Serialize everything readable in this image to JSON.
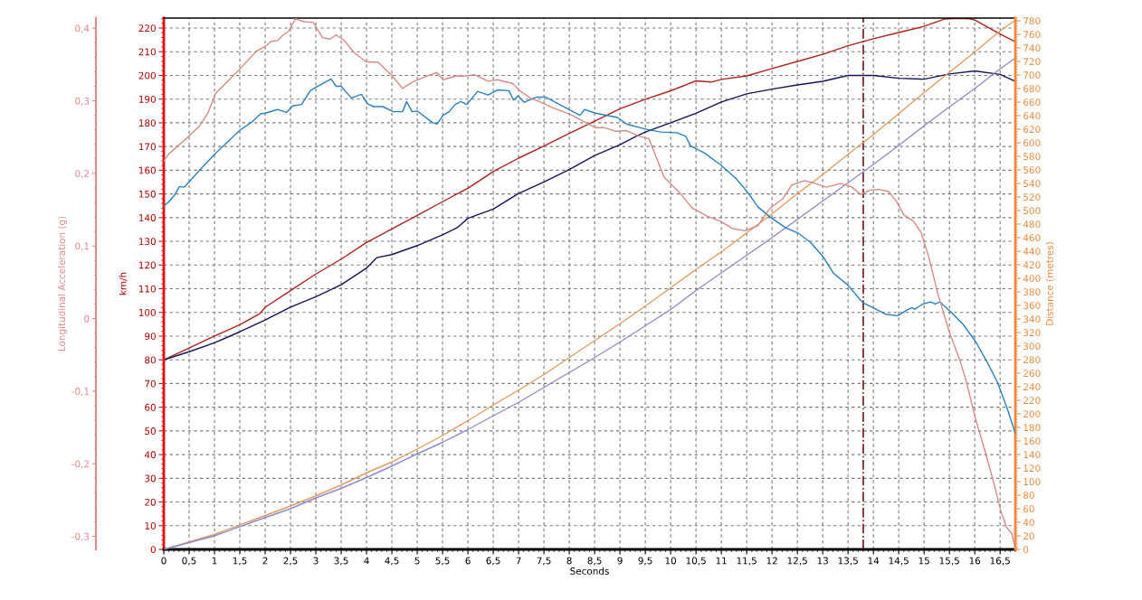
{
  "chart_data": {
    "type": "line",
    "xlabel": "Seconds",
    "ylabel": "km/h",
    "y2label": "Distance (metres)",
    "y3label": "Longitudinal Acceleration (g)",
    "xlim": [
      0,
      16.8
    ],
    "xticks": [
      0,
      {
        "value": 0.5,
        "label": "0,5"
      },
      1,
      {
        "value": 1.5,
        "label": "1,5"
      },
      2,
      {
        "value": 2.5,
        "label": "2,5"
      },
      3,
      {
        "value": 3.5,
        "label": "3,5"
      },
      4,
      {
        "value": 4.5,
        "label": "4,5"
      },
      5,
      {
        "value": 5.5,
        "label": "5,5"
      },
      6,
      {
        "value": 6.5,
        "label": "6,5"
      },
      7,
      {
        "value": 7.5,
        "label": "7,5"
      },
      8,
      {
        "value": 8.5,
        "label": "8,5"
      },
      9,
      {
        "value": 9.5,
        "label": "9,5"
      },
      10,
      {
        "value": 10.5,
        "label": "10,5"
      },
      11,
      {
        "value": 11.5,
        "label": "11,5"
      },
      12,
      {
        "value": 12.5,
        "label": "12,5"
      },
      13,
      {
        "value": 13.5,
        "label": "13,5"
      },
      14,
      {
        "value": 14.5,
        "label": "14,5"
      },
      15,
      {
        "value": 15.5,
        "label": "15,5"
      },
      16,
      {
        "value": 16.5,
        "label": "16,5"
      }
    ],
    "ylim": [
      0,
      224.2
    ],
    "yticks": [
      0,
      10,
      20,
      30,
      40,
      50,
      60,
      70,
      80,
      90,
      100,
      110,
      120,
      130,
      140,
      150,
      160,
      170,
      180,
      190,
      200,
      210,
      220
    ],
    "y2lim": [
      0,
      784
    ],
    "y2ticks": [
      0,
      20,
      40,
      60,
      80,
      100,
      120,
      140,
      160,
      180,
      200,
      220,
      240,
      260,
      280,
      300,
      320,
      340,
      360,
      380,
      400,
      420,
      440,
      460,
      480,
      500,
      520,
      540,
      560,
      580,
      600,
      620,
      640,
      660,
      680,
      700,
      720,
      740,
      760,
      780
    ],
    "y3lim": [
      -0.318,
      0.414
    ],
    "y3ticks": [
      {
        "value": 0.4,
        "label": "0,4"
      },
      {
        "value": 0.3,
        "label": "0,3"
      },
      {
        "value": 0.2,
        "label": "0,2"
      },
      {
        "value": 0.1,
        "label": "0,1"
      },
      {
        "value": 0,
        "label": "0"
      },
      {
        "value": -0.1,
        "label": "-0,1"
      },
      {
        "value": -0.2,
        "label": "-0,2"
      },
      {
        "value": -0.3,
        "label": "-0,3"
      }
    ],
    "grid": true,
    "ref_lines": [
      {
        "axis": "x",
        "value": 13.8,
        "color": "#7a1a1a",
        "line_style": "dashdot"
      }
    ],
    "series": [
      {
        "color": "#b0201c",
        "x": [
          0,
          0.5,
          1,
          1.5,
          1.9,
          2,
          2.5,
          3,
          3.5,
          4,
          4.5,
          5,
          5.5,
          6,
          6.5,
          7,
          7.5,
          8,
          8.5,
          9,
          9.5,
          10,
          10.5,
          10.8,
          11,
          11.5,
          12,
          12.5,
          13,
          13.5,
          14,
          14.5,
          15,
          15.4,
          15.7,
          15.9,
          16,
          16.5,
          16.8
        ],
        "values": [
          80,
          85,
          90,
          94.8,
          99.6,
          102.2,
          109.2,
          116.2,
          122.5,
          129.5,
          135.2,
          140.9,
          146.7,
          152.4,
          159.4,
          165.1,
          170.2,
          175.5,
          180.7,
          185.9,
          189.9,
          193.5,
          197.7,
          197.2,
          198.3,
          199.8,
          202.9,
          205.9,
          208.9,
          212.5,
          215.5,
          218.1,
          220.7,
          223.8,
          224.1,
          223.9,
          223.4,
          217.5,
          214.2
        ]
      },
      {
        "color": "#14145a",
        "x": [
          0,
          0.5,
          1,
          1.5,
          2,
          2.5,
          3,
          3.5,
          4,
          4.2,
          4.5,
          5,
          5.5,
          5.8,
          6,
          6.5,
          7,
          7.5,
          8,
          8.5,
          9,
          9.3,
          9.5,
          10,
          10.5,
          11,
          11.5,
          12,
          12.5,
          13,
          13.5,
          14,
          14.5,
          15,
          15.5,
          16,
          16.5,
          16.8
        ],
        "values": [
          80,
          83.4,
          87.2,
          91.8,
          96.8,
          102.2,
          106.6,
          111.7,
          118.7,
          123.1,
          124.4,
          128.2,
          132.7,
          135.9,
          139.7,
          143.6,
          150.2,
          155.0,
          160.3,
          166.2,
          170.8,
          174.1,
          176.1,
          180.0,
          184.0,
          188.8,
          192.2,
          194.2,
          196.0,
          197.5,
          200.0,
          200.0,
          198.8,
          198.4,
          200.6,
          201.9,
          200.4,
          197.5
        ]
      },
      {
        "color": "#e39a60",
        "axis": "y2",
        "x": [
          0,
          0.5,
          1,
          2,
          2.5,
          3,
          3.5,
          4,
          4.5,
          5,
          5.5,
          6,
          6.5,
          7,
          7.5,
          8,
          8.5,
          9,
          9.5,
          10,
          10.5,
          11,
          11.5,
          12,
          12.5,
          13,
          13.5,
          14,
          14.5,
          15,
          15.5,
          16,
          16.5,
          16.8
        ],
        "values": [
          0,
          11,
          22,
          50,
          64,
          79,
          95,
          113,
          129,
          148,
          168,
          190,
          213,
          235,
          258,
          283,
          308,
          333,
          359,
          386,
          413,
          439,
          467,
          495,
          525,
          553,
          583,
          612,
          643,
          674,
          704,
          734,
          765,
          781
        ]
      },
      {
        "color": "#8c8ccc",
        "axis": "y2",
        "x": [
          0,
          0.5,
          1,
          2,
          2.5,
          3,
          3.5,
          4,
          4.5,
          5,
          5.5,
          6,
          6.5,
          7,
          7.5,
          8,
          8.5,
          9,
          9.5,
          10,
          10.5,
          11,
          11.5,
          12,
          12.5,
          13,
          13.5,
          14,
          14.5,
          15,
          15.5,
          16,
          16.5,
          16.8
        ],
        "values": [
          0,
          10,
          20,
          47,
          60,
          76,
          90,
          106,
          123,
          141,
          158,
          177,
          197,
          217,
          239,
          261,
          283,
          306,
          330,
          354,
          382,
          408,
          434,
          460,
          487,
          514,
          541,
          568,
          596,
          625,
          653,
          680,
          709,
          725
        ]
      },
      {
        "color": "#2a7fc0",
        "axis": "y3",
        "x": [
          0,
          0.1,
          0.22,
          0.31,
          0.4,
          0.52,
          0.7,
          1.01,
          1.51,
          1.76,
          1.91,
          2.0,
          2.24,
          2.42,
          2.54,
          2.72,
          2.89,
          3.01,
          3.3,
          3.4,
          3.5,
          3.7,
          3.9,
          4.02,
          4.14,
          4.32,
          4.53,
          4.71,
          4.79,
          4.9,
          5.0,
          5.3,
          5.39,
          5.51,
          5.63,
          5.75,
          5.86,
          5.98,
          6.19,
          6.4,
          6.58,
          6.81,
          6.9,
          6.99,
          7.11,
          7.35,
          7.54,
          7.78,
          8.21,
          8.3,
          8.52,
          8.95,
          9.13,
          9.5,
          9.81,
          10.12,
          10.3,
          10.39,
          10.67,
          10.98,
          11.29,
          11.53,
          11.72,
          11.96,
          12.27,
          12.51,
          12.76,
          13.01,
          13.22,
          13.5,
          13.75,
          13.84,
          14.05,
          14.24,
          14.48,
          14.67,
          14.76,
          14.82,
          14.97,
          15.13,
          15.22,
          15.31,
          15.53,
          15.77,
          16.02,
          16.26,
          16.45,
          16.63,
          16.8
        ],
        "values": [
          0.155,
          0.161,
          0.171,
          0.182,
          0.181,
          0.19,
          0.204,
          0.227,
          0.26,
          0.272,
          0.282,
          0.283,
          0.288,
          0.284,
          0.293,
          0.295,
          0.314,
          0.319,
          0.33,
          0.32,
          0.32,
          0.304,
          0.309,
          0.296,
          0.292,
          0.292,
          0.285,
          0.285,
          0.299,
          0.285,
          0.286,
          0.27,
          0.268,
          0.28,
          0.285,
          0.295,
          0.299,
          0.295,
          0.313,
          0.308,
          0.315,
          0.314,
          0.301,
          0.307,
          0.298,
          0.305,
          0.305,
          0.296,
          0.28,
          0.288,
          0.283,
          0.277,
          0.268,
          0.261,
          0.257,
          0.256,
          0.251,
          0.238,
          0.228,
          0.212,
          0.193,
          0.173,
          0.154,
          0.14,
          0.125,
          0.118,
          0.105,
          0.085,
          0.062,
          0.046,
          0.025,
          0.02,
          0.013,
          0.006,
          0.004,
          0.012,
          0.015,
          0.013,
          0.02,
          0.023,
          0.02,
          0.023,
          0.009,
          -0.008,
          -0.032,
          -0.062,
          -0.088,
          -0.122,
          -0.158
        ]
      },
      {
        "color": "#d98a84",
        "axis": "y3",
        "x": [
          0,
          0.1,
          0.28,
          0.46,
          0.7,
          0.87,
          1.02,
          1.29,
          1.53,
          1.82,
          2.0,
          2.12,
          2.24,
          2.36,
          2.45,
          2.6,
          2.77,
          2.95,
          3.13,
          3.28,
          3.4,
          3.55,
          3.76,
          3.99,
          4.23,
          4.5,
          4.71,
          4.91,
          5.15,
          5.39,
          5.51,
          5.75,
          5.92,
          6.13,
          6.4,
          6.58,
          6.88,
          7.02,
          7.23,
          7.47,
          7.66,
          8.03,
          8.52,
          8.7,
          8.92,
          9.13,
          9.38,
          9.57,
          9.87,
          10.18,
          10.43,
          10.73,
          10.98,
          11.22,
          11.47,
          11.72,
          11.96,
          12.21,
          12.39,
          12.64,
          12.82,
          13.07,
          13.35,
          13.56,
          13.75,
          13.93,
          14.11,
          14.3,
          14.45,
          14.6,
          14.79,
          14.94,
          15.1,
          15.28,
          15.5,
          15.71,
          15.83,
          16.02,
          16.2,
          16.39,
          16.51,
          16.63,
          16.73,
          16.8
        ],
        "values": [
          0.217,
          0.227,
          0.238,
          0.249,
          0.265,
          0.283,
          0.31,
          0.329,
          0.346,
          0.368,
          0.375,
          0.382,
          0.383,
          0.391,
          0.395,
          0.413,
          0.409,
          0.408,
          0.387,
          0.385,
          0.391,
          0.384,
          0.366,
          0.354,
          0.353,
          0.335,
          0.317,
          0.326,
          0.333,
          0.339,
          0.329,
          0.334,
          0.334,
          0.336,
          0.327,
          0.329,
          0.324,
          0.314,
          0.304,
          0.297,
          0.291,
          0.281,
          0.263,
          0.263,
          0.258,
          0.259,
          0.251,
          0.248,
          0.195,
          0.173,
          0.152,
          0.141,
          0.134,
          0.124,
          0.121,
          0.128,
          0.152,
          0.165,
          0.184,
          0.19,
          0.187,
          0.181,
          0.186,
          0.182,
          0.171,
          0.177,
          0.178,
          0.175,
          0.162,
          0.143,
          0.134,
          0.119,
          0.083,
          0.032,
          -0.019,
          -0.058,
          -0.086,
          -0.139,
          -0.182,
          -0.23,
          -0.264,
          -0.288,
          -0.296,
          -0.317
        ]
      }
    ]
  }
}
